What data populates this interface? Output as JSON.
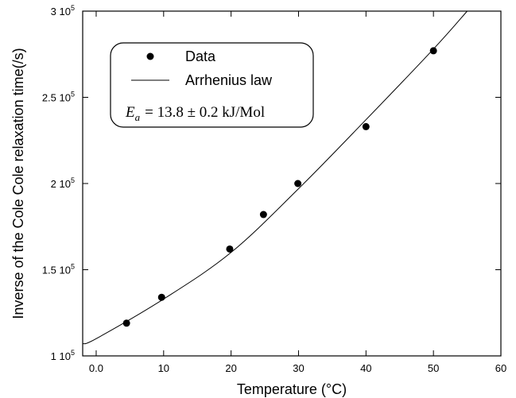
{
  "chart_data": {
    "type": "scatter",
    "xlabel": "Temperature (°C)",
    "ylabel": "Inverse of the Cole Cole relaxation time(/s)",
    "xlim": [
      -2,
      60
    ],
    "ylim": [
      100000,
      300000
    ],
    "x_ticks": [
      0,
      10,
      20,
      30,
      40,
      50,
      60
    ],
    "x_tick_labels": [
      "0.0",
      "10",
      "20",
      "30",
      "40",
      "50",
      "60"
    ],
    "y_ticks": [
      100000,
      150000,
      200000,
      250000,
      300000
    ],
    "y_tick_labels": [
      {
        "mantissa": "1 10",
        "exp": "5"
      },
      {
        "mantissa": "1.5 10",
        "exp": "5"
      },
      {
        "mantissa": "2 10",
        "exp": "5"
      },
      {
        "mantissa": "2.5 10",
        "exp": "5"
      },
      {
        "mantissa": "3 10",
        "exp": "5"
      }
    ],
    "series": [
      {
        "name": "Data",
        "kind": "scatter",
        "color": "#000000",
        "x": [
          4.5,
          9.7,
          19.8,
          24.8,
          29.9,
          40,
          50
        ],
        "y": [
          119000,
          134000,
          162000,
          182000,
          200000,
          233000,
          277000
        ]
      },
      {
        "name": "Arrhenius law",
        "kind": "line",
        "color": "#000000",
        "x": [
          -2,
          0,
          10,
          20,
          30,
          40,
          50,
          55
        ],
        "y": [
          107000,
          110000,
          133000,
          160000,
          197000,
          237000,
          278000,
          300000
        ]
      }
    ],
    "legend": {
      "position": "top-left",
      "entries": [
        "Data",
        "Arrhenius law"
      ],
      "annotation": {
        "symbol": "E",
        "subscript": "a",
        "text": "= 13.8 ± 0.2 kJ/Mol"
      }
    },
    "grid": false
  }
}
